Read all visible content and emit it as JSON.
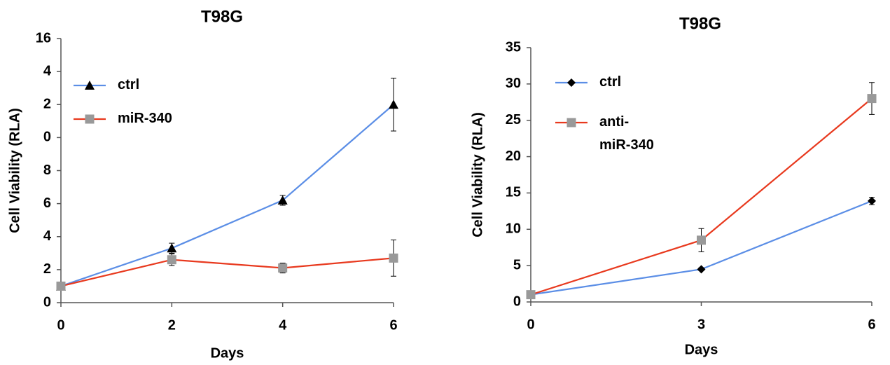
{
  "chart_data": [
    {
      "type": "line",
      "title": "T98G",
      "xlabel": "Days",
      "ylabel": "Cell Viability (RLA)",
      "x": [
        0,
        2,
        4,
        6
      ],
      "xlim": [
        0,
        6
      ],
      "xticks": [
        0,
        2,
        4,
        6
      ],
      "ylim": [
        0,
        16
      ],
      "yticks": [
        0,
        2,
        4,
        6,
        8,
        {
          "value": 10,
          "label": "0"
        },
        {
          "value": 12,
          "label": "2"
        },
        {
          "value": 14,
          "label": "4"
        },
        16
      ],
      "legend": "upper left",
      "series": [
        {
          "name": "ctrl",
          "color": "#5b8ee6",
          "marker": "triangle",
          "marker_color": "#000000",
          "values": [
            1,
            3.3,
            6.2,
            12.0
          ],
          "errors": [
            0,
            0.3,
            0.3,
            1.6
          ]
        },
        {
          "name": "miR-340",
          "color": "#e8391e",
          "marker": "square",
          "marker_color": "#999999",
          "values": [
            1,
            2.6,
            2.1,
            2.7
          ],
          "errors": [
            0,
            0.35,
            0.3,
            1.1
          ]
        }
      ]
    },
    {
      "type": "line",
      "title": "T98G",
      "xlabel": "Days",
      "ylabel": "Cell Viability (RLA)",
      "x": [
        0,
        3,
        6
      ],
      "xlim": [
        0,
        6
      ],
      "xticks": [
        0,
        3,
        6
      ],
      "ylim": [
        0,
        35
      ],
      "yticks": [
        0,
        5,
        10,
        15,
        20,
        25,
        30,
        35
      ],
      "legend": "upper left",
      "series": [
        {
          "name": "ctrl",
          "color": "#5b8ee6",
          "marker": "diamond",
          "marker_color": "#000000",
          "values": [
            1,
            4.5,
            13.9
          ],
          "errors": [
            0,
            0.2,
            0.5
          ]
        },
        {
          "name": "anti-\nmiR-340",
          "color": "#e8391e",
          "marker": "square",
          "marker_color": "#999999",
          "values": [
            1,
            8.5,
            28.0
          ],
          "errors": [
            0,
            1.6,
            2.2
          ]
        }
      ]
    }
  ]
}
